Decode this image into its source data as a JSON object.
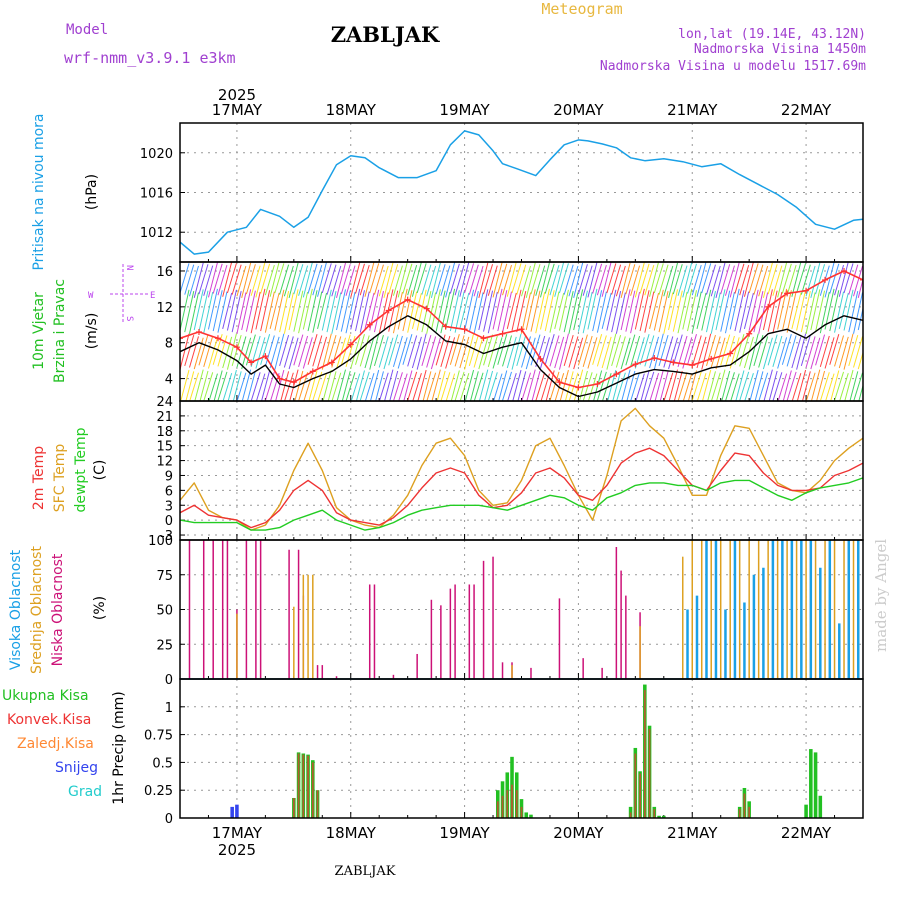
{
  "header": {
    "model_label": "Model",
    "model_name": "wrf-nmm_v3.9.1 e3km",
    "station_title": "ZABLJAK",
    "product_title": "Meteogram",
    "lonlat": "lon,lat (19.14E, 43.12N)",
    "elevation": "Nadmorska Visina 1450m",
    "model_elevation": "Nadmorska Visina u modelu 1517.69m"
  },
  "footer": {
    "station": "ZABLJAK"
  },
  "watermark": "made by Angel",
  "colors": {
    "pressure": "#1aa0e6",
    "wind_label": "#22c022",
    "wind_speed": "#000000",
    "wind_gust": "#ff3333",
    "temp_2m": "#ee3333",
    "temp_sfc": "#dda020",
    "dewpoint": "#22cc22",
    "cloud_high": "#1aa0e6",
    "cloud_mid": "#dda020",
    "cloud_low": "#cc1177",
    "precip_total": "#22c022",
    "precip_conv": "#ee3333",
    "precip_frozen": "#ff8833",
    "snow": "#3344ee",
    "hail": "#22cccc",
    "compass": "#bb44ee",
    "title_orange": "#e8b840",
    "header_purple": "#a040d0"
  },
  "time_axis": {
    "year": "2025",
    "day_labels": [
      "17MAY",
      "18MAY",
      "19MAY",
      "20MAY",
      "21MAY",
      "22MAY"
    ],
    "start_hour": 0,
    "end_hour": 144,
    "day_hours": [
      12,
      36,
      60,
      84,
      108,
      132
    ]
  },
  "compass": {
    "n": "N",
    "s": "S",
    "e": "E",
    "w": "W"
  },
  "chart_data": [
    {
      "type": "line",
      "title": "Pritisak na nivou mora",
      "ylabel": "(hPa)",
      "ylim": [
        1009,
        1023
      ],
      "yticks": [
        1012,
        1016,
        1020
      ],
      "series": [
        {
          "name": "Pritisak na nivou mora",
          "x": [
            0,
            3,
            6,
            10,
            14,
            17,
            21,
            24,
            27,
            30,
            33,
            36,
            39,
            42,
            46,
            50,
            54,
            57,
            60,
            63,
            66,
            68,
            71,
            75,
            78,
            81,
            84,
            86,
            89,
            92,
            95,
            98,
            102,
            106,
            110,
            114,
            118,
            122,
            126,
            130,
            134,
            138,
            142,
            144
          ],
          "values": [
            1011.0,
            1009.8,
            1010.0,
            1012.0,
            1012.5,
            1014.3,
            1013.6,
            1012.5,
            1013.5,
            1016.2,
            1018.8,
            1019.7,
            1019.5,
            1018.5,
            1017.5,
            1017.5,
            1018.2,
            1020.8,
            1022.2,
            1021.8,
            1020.2,
            1018.9,
            1018.4,
            1017.7,
            1019.3,
            1020.8,
            1021.3,
            1021.2,
            1020.9,
            1020.5,
            1019.5,
            1019.2,
            1019.4,
            1019.1,
            1018.6,
            1018.9,
            1017.8,
            1016.8,
            1015.8,
            1014.5,
            1012.8,
            1012.3,
            1013.2,
            1013.3
          ]
        }
      ]
    },
    {
      "type": "line",
      "title": "10m Vjetar Brzina i Pravac",
      "ylabel": "(m/s)",
      "ylim": [
        1.5,
        17
      ],
      "yticks": [
        4,
        8,
        12,
        16
      ],
      "series": [
        {
          "name": "10m Vjetar brzina",
          "x": [
            0,
            4,
            8,
            12,
            15,
            18,
            21,
            24,
            28,
            32,
            36,
            40,
            44,
            48,
            52,
            56,
            60,
            64,
            68,
            72,
            76,
            80,
            84,
            88,
            92,
            96,
            100,
            104,
            108,
            112,
            116,
            120,
            124,
            128,
            132,
            136,
            140,
            144
          ],
          "values": [
            7.0,
            8.0,
            7.2,
            6.0,
            4.5,
            5.5,
            3.4,
            3.0,
            4.0,
            4.8,
            6.2,
            8.2,
            9.8,
            11.0,
            10.0,
            8.2,
            7.8,
            6.8,
            7.5,
            8.0,
            5.0,
            3.0,
            2.0,
            2.5,
            3.5,
            4.5,
            5.0,
            4.8,
            4.5,
            5.2,
            5.5,
            7.0,
            9.0,
            9.5,
            8.5,
            10.0,
            11.0,
            10.5
          ]
        },
        {
          "name": "Udar vjetra",
          "x": [
            0,
            4,
            8,
            12,
            15,
            18,
            21,
            24,
            28,
            32,
            36,
            40,
            44,
            48,
            52,
            56,
            60,
            64,
            68,
            72,
            76,
            80,
            84,
            88,
            92,
            96,
            100,
            104,
            108,
            112,
            116,
            120,
            124,
            128,
            132,
            136,
            140,
            144
          ],
          "values": [
            8.5,
            9.2,
            8.5,
            7.5,
            5.8,
            6.5,
            4.0,
            3.6,
            4.8,
            5.8,
            7.8,
            10.0,
            11.6,
            12.8,
            11.8,
            9.8,
            9.5,
            8.5,
            9.0,
            9.5,
            6.2,
            3.6,
            3.0,
            3.4,
            4.5,
            5.6,
            6.3,
            5.8,
            5.5,
            6.2,
            6.8,
            9.0,
            12.0,
            13.5,
            13.8,
            15.0,
            16.0,
            15.0
          ]
        }
      ]
    },
    {
      "type": "line",
      "title": "2m Temp / SFC Temp / dewpt Temp",
      "ylabel": "(C)",
      "ylim": [
        -4,
        24
      ],
      "yticks": [
        -3,
        0,
        3,
        6,
        9,
        12,
        15,
        18,
        21,
        24
      ],
      "series": [
        {
          "name": "2m Temp",
          "x": [
            0,
            3,
            6,
            9,
            12,
            15,
            18,
            21,
            24,
            27,
            30,
            33,
            36,
            39,
            42,
            45,
            48,
            51,
            54,
            57,
            60,
            63,
            66,
            69,
            72,
            75,
            78,
            81,
            84,
            87,
            90,
            93,
            96,
            99,
            102,
            105,
            108,
            111,
            114,
            117,
            120,
            123,
            126,
            129,
            132,
            135,
            138,
            141,
            144
          ],
          "values": [
            1.5,
            3.0,
            1.0,
            0.5,
            0.0,
            -1.5,
            -0.5,
            2.0,
            6.0,
            8.0,
            6.0,
            1.5,
            0.0,
            -0.5,
            -1.0,
            0.5,
            3.0,
            6.5,
            9.5,
            10.5,
            9.5,
            5.0,
            2.5,
            3.0,
            5.5,
            9.5,
            10.5,
            8.5,
            5.0,
            4.0,
            7.0,
            11.5,
            13.5,
            14.5,
            13.0,
            10.0,
            7.0,
            6.0,
            10.0,
            13.5,
            13.0,
            9.5,
            7.0,
            6.0,
            6.0,
            6.5,
            9.0,
            10.0,
            11.5
          ]
        },
        {
          "name": "SFC Temp",
          "x": [
            0,
            3,
            6,
            9,
            12,
            15,
            18,
            21,
            24,
            27,
            30,
            33,
            36,
            39,
            42,
            45,
            48,
            51,
            54,
            57,
            60,
            63,
            66,
            69,
            72,
            75,
            78,
            81,
            84,
            87,
            90,
            93,
            96,
            99,
            102,
            105,
            108,
            111,
            114,
            117,
            120,
            123,
            126,
            129,
            132,
            135,
            138,
            141,
            144
          ],
          "values": [
            4.0,
            7.5,
            2.0,
            0.5,
            0.0,
            -2.0,
            -1.0,
            3.0,
            10.0,
            15.5,
            10.0,
            2.5,
            0.0,
            -1.0,
            -1.5,
            1.0,
            5.0,
            11.0,
            15.5,
            16.5,
            13.0,
            6.0,
            3.0,
            3.5,
            8.0,
            15.0,
            16.5,
            11.0,
            5.0,
            0.0,
            9.0,
            20.0,
            22.5,
            19.0,
            16.5,
            11.0,
            5.0,
            5.0,
            13.0,
            19.0,
            18.5,
            13.0,
            7.5,
            6.0,
            5.5,
            8.0,
            12.0,
            14.5,
            16.5
          ]
        },
        {
          "name": "dewpt Temp",
          "x": [
            0,
            3,
            6,
            9,
            12,
            15,
            18,
            21,
            24,
            27,
            30,
            33,
            36,
            39,
            42,
            45,
            48,
            51,
            54,
            57,
            60,
            63,
            66,
            69,
            72,
            75,
            78,
            81,
            84,
            87,
            90,
            93,
            96,
            99,
            102,
            105,
            108,
            111,
            114,
            117,
            120,
            123,
            126,
            129,
            132,
            135,
            138,
            141,
            144
          ],
          "values": [
            0.0,
            -0.5,
            -0.5,
            -0.5,
            -0.5,
            -2.0,
            -2.0,
            -1.5,
            0.0,
            1.0,
            2.0,
            0.0,
            -1.0,
            -2.0,
            -1.5,
            -0.5,
            1.0,
            2.0,
            2.5,
            3.0,
            3.0,
            3.0,
            2.5,
            2.0,
            3.0,
            4.0,
            5.0,
            4.5,
            3.0,
            2.0,
            4.5,
            5.5,
            7.0,
            7.5,
            7.5,
            7.0,
            7.0,
            6.0,
            7.5,
            8.0,
            8.0,
            6.5,
            5.0,
            4.0,
            5.5,
            6.5,
            7.0,
            7.5,
            8.5
          ]
        }
      ]
    },
    {
      "type": "bar",
      "title": "Visoka Oblacnost / Srednja Oblacnost / Niska Oblacnost",
      "ylabel": "(%)",
      "ylim": [
        0,
        100
      ],
      "yticks": [
        0,
        25,
        50,
        75,
        100
      ],
      "series": [
        {
          "name": "Niska Oblacnost",
          "x": [
            2,
            5,
            7,
            9,
            10,
            12,
            14,
            16,
            17,
            23,
            25,
            26,
            29,
            30,
            33,
            40,
            41,
            45,
            50,
            53,
            55,
            57,
            58,
            61,
            62,
            64,
            66,
            68,
            70,
            74,
            80,
            85,
            89,
            92,
            93,
            94,
            97
          ],
          "values": [
            100,
            100,
            100,
            100,
            100,
            50,
            100,
            100,
            100,
            93,
            93,
            60,
            10,
            10,
            2,
            68,
            68,
            3,
            18,
            57,
            53,
            65,
            68,
            68,
            68,
            85,
            88,
            12,
            12,
            8,
            58,
            15,
            8,
            95,
            78,
            60,
            48
          ]
        },
        {
          "name": "Srednja Oblacnost",
          "x": [
            12,
            24,
            26,
            27,
            28,
            70,
            97,
            106,
            108,
            110,
            112,
            114,
            116,
            118,
            120,
            122,
            124,
            126,
            128,
            130,
            132,
            134,
            136,
            138,
            140,
            142
          ],
          "values": [
            47,
            52,
            75,
            75,
            75,
            10,
            38,
            88,
            100,
            100,
            100,
            100,
            100,
            100,
            100,
            100,
            100,
            100,
            100,
            100,
            100,
            100,
            100,
            100,
            100,
            100
          ]
        },
        {
          "name": "Visoka Oblacnost",
          "x": [
            107,
            109,
            111,
            113,
            115,
            117,
            119,
            121,
            123,
            125,
            127,
            129,
            131,
            133,
            135,
            137,
            139,
            141,
            143
          ],
          "values": [
            50,
            60,
            100,
            100,
            50,
            100,
            55,
            75,
            80,
            100,
            100,
            100,
            100,
            100,
            80,
            100,
            40,
            100,
            100
          ]
        }
      ]
    },
    {
      "type": "bar",
      "title": "1hr Precip",
      "ylabel": "1hr Precip (mm)",
      "ylim": [
        0,
        1.25
      ],
      "yticks": [
        0,
        0.25,
        0.5,
        0.75,
        1
      ],
      "legend": [
        "Ukupna Kisa",
        "Konvek.Kisa",
        "Zaledj.Kisa",
        "Snijeg",
        "Grad"
      ],
      "series": [
        {
          "name": "Ukupna Kisa",
          "x": [
            24,
            25,
            26,
            27,
            28,
            29,
            67,
            68,
            69,
            70,
            71,
            72,
            73,
            74,
            95,
            96,
            97,
            98,
            99,
            100,
            101,
            102,
            118,
            119,
            120,
            132,
            133,
            134,
            135
          ],
          "values": [
            0.18,
            0.59,
            0.58,
            0.57,
            0.52,
            0.25,
            0.25,
            0.33,
            0.41,
            0.55,
            0.41,
            0.17,
            0.05,
            0.03,
            0.1,
            0.63,
            0.42,
            1.2,
            0.83,
            0.1,
            0.02,
            0.02,
            0.1,
            0.27,
            0.15,
            0.12,
            0.62,
            0.59,
            0.2
          ]
        },
        {
          "name": "Konvek.Kisa",
          "x": [
            24,
            25,
            26,
            27,
            28,
            29,
            67,
            68,
            69,
            70,
            71,
            72,
            95,
            96,
            97,
            98,
            99,
            100,
            118,
            119,
            120
          ],
          "values": [
            0.18,
            0.58,
            0.57,
            0.56,
            0.5,
            0.25,
            0.15,
            0.2,
            0.25,
            0.3,
            0.25,
            0.1,
            0.05,
            0.58,
            0.4,
            1.15,
            0.8,
            0.08,
            0.08,
            0.22,
            0.1
          ]
        },
        {
          "name": "Snijeg",
          "x": [
            11,
            12
          ],
          "values": [
            0.1,
            0.12
          ]
        }
      ]
    }
  ],
  "panel_labels": {
    "p1": [
      "Pritisak na nivou mora",
      "(hPa)"
    ],
    "p2": [
      "10m Vjetar",
      "Brzina i Pravac",
      "(m/s)"
    ],
    "p3": [
      "2m Temp",
      "SFC Temp",
      "dewpt Temp",
      "(C)"
    ],
    "p4": [
      "Visoka Oblacnost",
      "Srednja Oblacnost",
      "Niska Oblacnost",
      "(%)"
    ],
    "p5": [
      "1hr Precip (mm)"
    ]
  }
}
